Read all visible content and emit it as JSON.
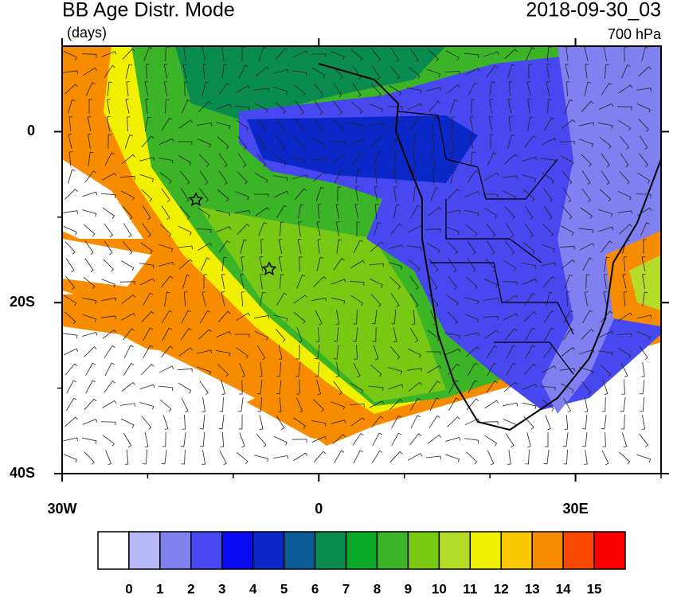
{
  "title": "BB Age Distr. Mode",
  "units": "(days)",
  "datetime": "2018-09-30_03",
  "level": "700 hPa",
  "map": {
    "xlim": [
      -30,
      40
    ],
    "ylim": [
      -40,
      10
    ],
    "xticks": [
      {
        "value": -30,
        "label": "30W"
      },
      0,
      {
        "value": 30,
        "label": "30E"
      }
    ],
    "yticks": [
      0,
      {
        "value": -20,
        "label": "20S"
      },
      {
        "value": -40,
        "label": "40S"
      }
    ]
  },
  "colorbar": {
    "levels": [
      0,
      1,
      2,
      3,
      4,
      5,
      6,
      7,
      8,
      9,
      10,
      11,
      12,
      13,
      14,
      15
    ],
    "colors": [
      "#ffffff",
      "#b8b8f8",
      "#8080f0",
      "#4848f0",
      "#0a0af0",
      "#0a28c8",
      "#0a5a96",
      "#0a8c50",
      "#0aa828",
      "#3cb428",
      "#78c814",
      "#b4dc28",
      "#f0f000",
      "#f8c800",
      "#f88c00",
      "#f84800",
      "#f80000"
    ]
  }
}
